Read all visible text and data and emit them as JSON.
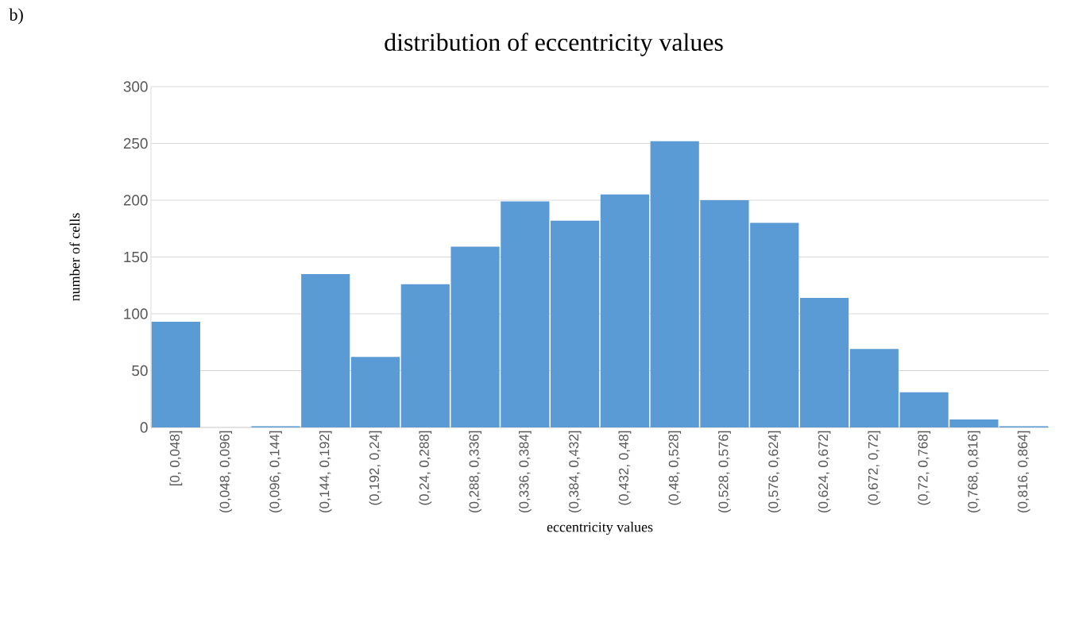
{
  "chart_data": {
    "type": "bar",
    "title": "distribution of eccentricity values",
    "xlabel": "eccentricity values",
    "ylabel": "number of cells",
    "annotations": [
      "b)"
    ],
    "categories": [
      "[0, 0,048]",
      "(0,048, 0,096]",
      "(0,096, 0,144]",
      "(0,144, 0,192]",
      "(0,192, 0,24]",
      "(0,24, 0,288]",
      "(0,288, 0,336]",
      "(0,336, 0,384]",
      "(0,384, 0,432]",
      "(0,432, 0,48]",
      "(0,48, 0,528]",
      "(0,528, 0,576]",
      "(0,576, 0,624]",
      "(0,624, 0,672]",
      "(0,672, 0,72]",
      "(0,72, 0,768]",
      "(0,768, 0,816]",
      "(0,816, 0,864]"
    ],
    "values": [
      93,
      0,
      1,
      135,
      62,
      126,
      159,
      199,
      182,
      205,
      252,
      200,
      180,
      114,
      69,
      31,
      7,
      1
    ],
    "color": "#5b9bd5",
    "ylim": [
      0,
      300
    ],
    "yticks": [
      0,
      50,
      100,
      150,
      200,
      250,
      300
    ],
    "grid": "y"
  }
}
